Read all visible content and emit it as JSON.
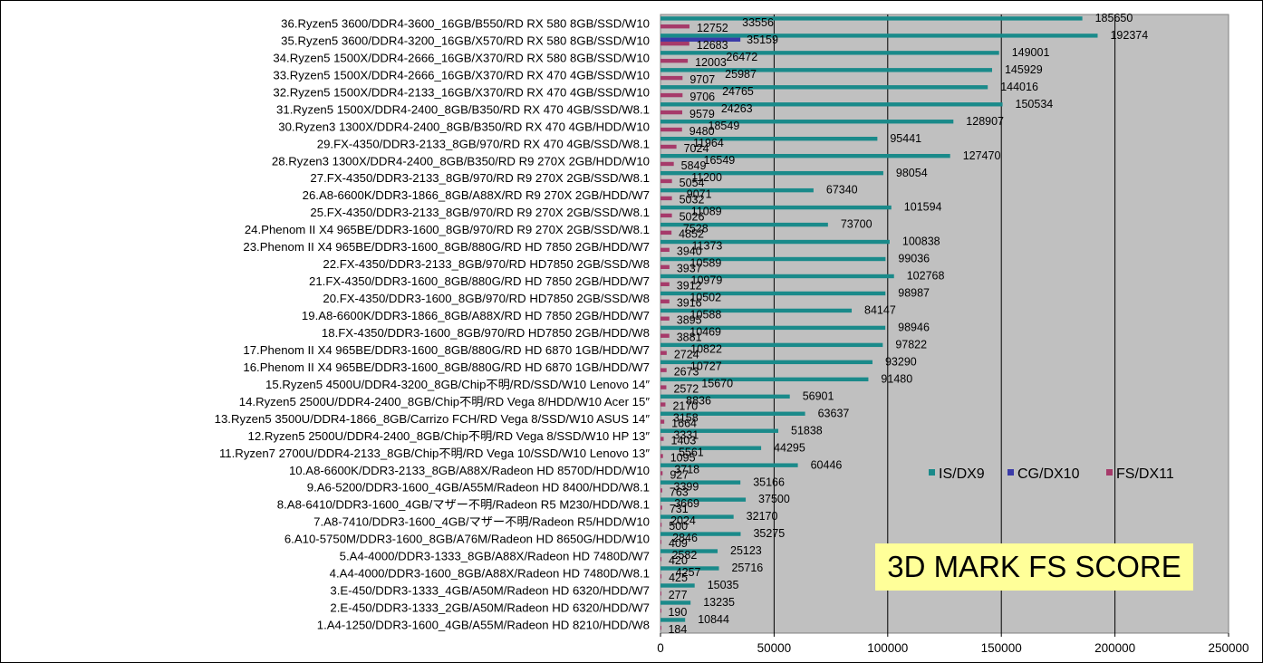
{
  "chart_data": {
    "type": "bar",
    "orientation": "horizontal",
    "title": "3D MARK FS SCORE",
    "xlim": [
      0,
      250000
    ],
    "x_ticks": [
      "0",
      "50000",
      "100000",
      "150000",
      "200000",
      "250000"
    ],
    "grid": "vertical gridlines",
    "legend_position": "right, inside plot",
    "colors": {
      "IS/DX9": "#1a8a8a",
      "CG/DX10": "#3a3aa8",
      "FS/DX11": "#a63a6a",
      "plot_bg": "#c0c0c0"
    },
    "categories": [
      "1.A4-1250/DDR3-1600_4GB/A55M/Radeon HD 8210/HDD/W8",
      "2.E-450/DDR3-1333_2GB/A50M/Radeon HD 6320/HDD/W7",
      "3.E-450/DDR3-1333_4GB/A50M/Radeon HD 6320/HDD/W7",
      "4.A4-4000/DDR3-1600_8GB/A88X/Radeon HD 7480D/W8.1",
      "5.A4-4000/DDR3-1333_8GB/A88X/Radeon HD 7480D/W7",
      "6.A10-5750M/DDR3-1600_8GB/A76M/Radeon HD 8650G/HDD/W10",
      "7.A8-7410/DDR3-1600_4GB/マザー不明/Radeon R5/HDD/W10",
      "8.A8-6410/DDR3-1600_4GB/マザー不明/Radeon R5 M230/HDD/W8.1",
      "9.A6-5200/DDR3-1600_4GB/A55M/Radeon HD 8400/HDD/W8.1",
      "10.A8-6600K/DDR3-2133_8GB/A88X/Radeon HD 8570D/HDD/W10",
      "11.Ryzen7 2700U/DDR4-2133_8GB/Chip不明/RD Vega 10/SSD/W10 Lenovo 13″",
      "12.Ryzen5 2500U/DDR4-2400_8GB/Chip不明/RD Vega  8/SSD/W10 HP 13″",
      "13.Ryzen5 3500U/DDR4-1866_8GB/Carrizo FCH/RD Vega 8/SSD/W10 ASUS 14″",
      "14.Ryzen5 2500U/DDR4-2400_8GB/Chip不明/RD Vega  8/HDD/W10 Acer 15″",
      "15.Ryzen5 4500U/DDR4-3200_8GB/Chip不明/RD/SSD/W10 Lenovo 14″",
      "16.Phenom II X4 965BE/DDR3-1600_8GB/880G/RD HD 6870 1GB/HDD/W7",
      "17.Phenom II X4 965BE/DDR3-1600_8GB/880G/RD HD 6870 1GB/HDD/W7",
      "18.FX-4350/DDR3-1600_8GB/970/RD HD7850 2GB/HDD/W8",
      "19.A8-6600K/DDR3-1866_8GB/A88X/RD HD 7850 2GB/HDD/W7",
      "20.FX-4350/DDR3-1600_8GB/970/RD HD7850 2GB/SSD/W8",
      "21.FX-4350/DDR3-1600_8GB/880G/RD HD 7850 2GB/HDD/W7",
      "22.FX-4350/DDR3-2133_8GB/970/RD HD7850 2GB/SSD/W8",
      "23.Phenom II X4 965BE/DDR3-1600_8GB/880G/RD HD 7850 2GB/HDD/W7",
      "24.Phenom II X4 965BE/DDR3-1600_8GB/970/RD R9 270X 2GB/SSD/W8.1",
      "25.FX-4350/DDR3-2133_8GB/970/RD R9 270X 2GB/SSD/W8.1",
      "26.A8-6600K/DDR3-1866_8GB/A88X/RD R9 270X 2GB/HDD/W7",
      "27.FX-4350/DDR3-2133_8GB/970/RD R9 270X 2GB/SSD/W8.1",
      "28.Ryzen3 1300X/DDR4-2400_8GB/B350/RD R9 270X 2GB/HDD/W10",
      "29.FX-4350/DDR3-2133_8GB/970/RD RX 470 4GB/SSD/W8.1",
      "30.Ryzen3 1300X/DDR4-2400_8GB/B350/RD RX 470 4GB/HDD/W10",
      "31.Ryzen5 1500X/DDR4-2400_8GB/B350/RD RX 470 4GB/SSD/W8.1",
      "32.Ryzen5 1500X/DDR4-2133_16GB/X370/RD RX 470 4GB/SSD/W10",
      "33.Ryzen5 1500X/DDR4-2666_16GB/X370/RD RX 470 4GB/SSD/W10",
      "34.Ryzen5 1500X/DDR4-2666_16GB/X370/RD RX 580 8GB/SSD/W10",
      "35.Ryzen5 3600/DDR4-3200_16GB/X570/RD RX 580 8GB/SSD/W10",
      "36.Ryzen5 3600/DDR4-3600_16GB/B550/RD RX 580 8GB/SSD/W10"
    ],
    "series": [
      {
        "name": "IS/DX9",
        "values": [
          10844,
          13235,
          15035,
          25716,
          25123,
          35275,
          32170,
          37500,
          35166,
          60446,
          44295,
          51838,
          63637,
          56901,
          91480,
          93290,
          97822,
          98946,
          84147,
          98987,
          102768,
          99036,
          100838,
          73700,
          101594,
          67340,
          98054,
          127470,
          95441,
          128907,
          150534,
          144016,
          145929,
          149001,
          192374,
          185650
        ]
      },
      {
        "name": "CG/DX10",
        "values": [
          null,
          null,
          null,
          null,
          null,
          null,
          null,
          null,
          null,
          null,
          null,
          null,
          null,
          null,
          null,
          null,
          null,
          null,
          null,
          null,
          null,
          null,
          null,
          null,
          null,
          null,
          null,
          null,
          null,
          null,
          null,
          null,
          null,
          null,
          35159,
          null
        ]
      },
      {
        "name": "FS/DX11",
        "values": [
          184,
          190,
          277,
          425,
          420,
          409,
          500,
          731,
          763,
          927,
          1095,
          1403,
          1664,
          2170,
          2572,
          2673,
          2724,
          3881,
          3895,
          3916,
          3912,
          3937,
          3940,
          4852,
          5026,
          5032,
          5054,
          5849,
          7024,
          9480,
          9579,
          9706,
          9707,
          12003,
          12683,
          12752
        ]
      }
    ],
    "data_labels": {
      "IS/DX9": [
        "10844",
        "13235",
        "15035",
        "25716",
        "25123",
        "35275",
        "32170",
        "37500",
        "35166",
        "60446",
        "44295",
        "51838",
        "63637",
        "56901",
        "91480",
        "93290",
        "97822",
        "98946",
        "84147",
        "98987",
        "102768",
        "99036",
        "100838",
        "73700",
        "101594",
        "67340",
        "98054",
        "127470",
        "95441",
        "128907",
        "150534",
        "144016",
        "145929",
        "149001",
        "192374",
        "185650"
      ],
      "CG/DX10": [
        "",
        "",
        "",
        "",
        "",
        "",
        "",
        "",
        "",
        "",
        "",
        "",
        "",
        "",
        "",
        "",
        "",
        "",
        "",
        "",
        "",
        "",
        "",
        "",
        "",
        "",
        "",
        "",
        "",
        "",
        "",
        "",
        "",
        "",
        "35159",
        ""
      ],
      "FS/DX11": [
        "184",
        "190",
        "277",
        "425",
        "420",
        "409",
        "500",
        "731",
        "763",
        "927",
        "1095",
        "1403",
        "1664",
        "2170",
        "2572",
        "2673",
        "2724",
        "3881",
        "3895",
        "3916",
        "3912",
        "3937",
        "3940",
        "4852",
        "5026",
        "5032",
        "5054",
        "5849",
        "7024",
        "9480",
        "9579",
        "9706",
        "9707",
        "12003",
        "12683",
        "12752"
      ],
      "extra": [
        "",
        "",
        "",
        "4257",
        "2582",
        "2846",
        "2024",
        "3669",
        "3399",
        "3718",
        "5561",
        "3331",
        "3158",
        "8836",
        "15670",
        "10727",
        "10822",
        "10469",
        "10588",
        "10502",
        "10979",
        "10589",
        "11373",
        "7528",
        "11089",
        "9071",
        "11200",
        "16549",
        "11964",
        "18549",
        "24263",
        "24765",
        "25987",
        "26472",
        "",
        "33556"
      ]
    }
  }
}
